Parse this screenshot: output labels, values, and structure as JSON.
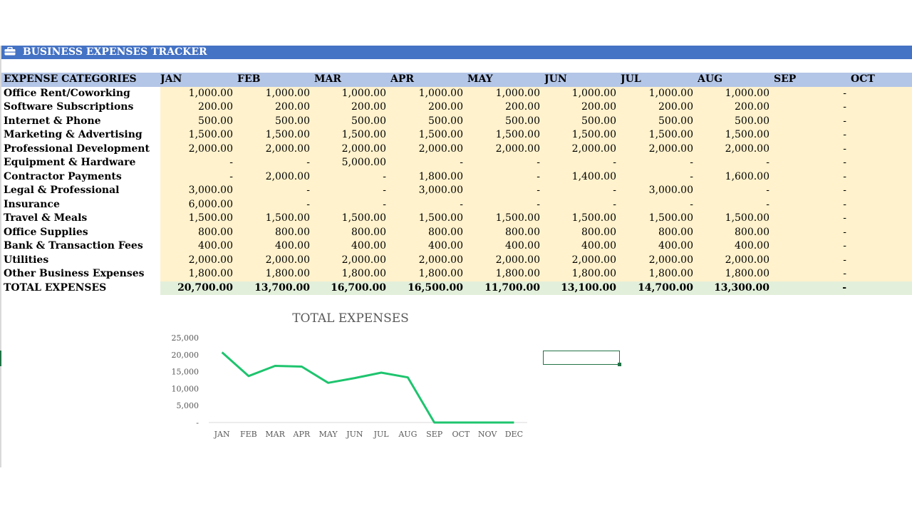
{
  "sheet": {
    "banner_title": "BUSINESS EXPENSES TRACKER",
    "header_label": "EXPENSE CATEGORIES",
    "visible_months": [
      "JAN",
      "FEB",
      "MAR",
      "APR",
      "MAY",
      "JUN",
      "JUL",
      "AUG",
      "SEP",
      "OCT"
    ],
    "rows": [
      {
        "category": "Office Rent/Coworking",
        "values": [
          "1,000.00",
          "1,000.00",
          "1,000.00",
          "1,000.00",
          "1,000.00",
          "1,000.00",
          "1,000.00",
          "1,000.00",
          "-",
          "-"
        ]
      },
      {
        "category": "Software Subscriptions",
        "values": [
          "200.00",
          "200.00",
          "200.00",
          "200.00",
          "200.00",
          "200.00",
          "200.00",
          "200.00",
          "-",
          "-"
        ]
      },
      {
        "category": "Internet & Phone",
        "values": [
          "500.00",
          "500.00",
          "500.00",
          "500.00",
          "500.00",
          "500.00",
          "500.00",
          "500.00",
          "-",
          "-"
        ]
      },
      {
        "category": "Marketing & Advertising",
        "values": [
          "1,500.00",
          "1,500.00",
          "1,500.00",
          "1,500.00",
          "1,500.00",
          "1,500.00",
          "1,500.00",
          "1,500.00",
          "-",
          "-"
        ]
      },
      {
        "category": "Professional Development",
        "values": [
          "2,000.00",
          "2,000.00",
          "2,000.00",
          "2,000.00",
          "2,000.00",
          "2,000.00",
          "2,000.00",
          "2,000.00",
          "-",
          "-"
        ]
      },
      {
        "category": "Equipment & Hardware",
        "values": [
          "-",
          "-",
          "5,000.00",
          "-",
          "-",
          "-",
          "-",
          "-",
          "-",
          "-"
        ]
      },
      {
        "category": "Contractor Payments",
        "values": [
          "-",
          "2,000.00",
          "-",
          "1,800.00",
          "-",
          "1,400.00",
          "-",
          "1,600.00",
          "-",
          "-"
        ]
      },
      {
        "category": "Legal & Professional",
        "values": [
          "3,000.00",
          "-",
          "-",
          "3,000.00",
          "-",
          "-",
          "3,000.00",
          "-",
          "-",
          "-"
        ]
      },
      {
        "category": "Insurance",
        "values": [
          "6,000.00",
          "-",
          "-",
          "-",
          "-",
          "-",
          "-",
          "-",
          "-",
          "-"
        ]
      },
      {
        "category": "Travel & Meals",
        "values": [
          "1,500.00",
          "1,500.00",
          "1,500.00",
          "1,500.00",
          "1,500.00",
          "1,500.00",
          "1,500.00",
          "1,500.00",
          "-",
          "-"
        ]
      },
      {
        "category": "Office Supplies",
        "values": [
          "800.00",
          "800.00",
          "800.00",
          "800.00",
          "800.00",
          "800.00",
          "800.00",
          "800.00",
          "-",
          "-"
        ]
      },
      {
        "category": "Bank & Transaction Fees",
        "values": [
          "400.00",
          "400.00",
          "400.00",
          "400.00",
          "400.00",
          "400.00",
          "400.00",
          "400.00",
          "-",
          "-"
        ]
      },
      {
        "category": "Utilities",
        "values": [
          "2,000.00",
          "2,000.00",
          "2,000.00",
          "2,000.00",
          "2,000.00",
          "2,000.00",
          "2,000.00",
          "2,000.00",
          "-",
          "-"
        ]
      },
      {
        "category": "Other Business Expenses",
        "values": [
          "1,800.00",
          "1,800.00",
          "1,800.00",
          "1,800.00",
          "1,800.00",
          "1,800.00",
          "1,800.00",
          "1,800.00",
          "-",
          "-"
        ]
      }
    ],
    "total": {
      "category": "TOTAL EXPENSES",
      "values": [
        "20,700.00",
        "13,700.00",
        "16,700.00",
        "16,500.00",
        "11,700.00",
        "13,100.00",
        "14,700.00",
        "13,300.00",
        "-",
        "-"
      ]
    }
  },
  "colors": {
    "banner": "#4472c4",
    "header": "#b4c6e7",
    "value_cells": "#fff2cc",
    "total_cells": "#e2efda",
    "line": "#1ec46e",
    "selection": "#217346"
  },
  "icons": {
    "banner": "briefcase-icon"
  },
  "chart_data": {
    "type": "line",
    "title": "TOTAL EXPENSES",
    "categories": [
      "JAN",
      "FEB",
      "MAR",
      "APR",
      "MAY",
      "JUN",
      "JUL",
      "AUG",
      "SEP",
      "OCT",
      "NOV",
      "DEC"
    ],
    "values": [
      20700,
      13700,
      16700,
      16500,
      11700,
      13100,
      14700,
      13300,
      0,
      0,
      0,
      0
    ],
    "ylim": [
      0,
      25000
    ],
    "yticks": [
      0,
      5000,
      10000,
      15000,
      20000,
      25000
    ],
    "ytick_labels": [
      "-",
      "5,000",
      "10,000",
      "15,000",
      "20,000",
      "25,000"
    ],
    "grid": false,
    "legend": "none"
  }
}
